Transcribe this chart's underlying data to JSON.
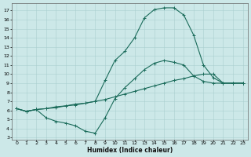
{
  "xlabel": "Humidex (Indice chaleur)",
  "xlim": [
    -0.5,
    23.5
  ],
  "ylim": [
    2.8,
    17.8
  ],
  "xticks": [
    0,
    1,
    2,
    3,
    4,
    5,
    6,
    7,
    8,
    9,
    10,
    11,
    12,
    13,
    14,
    15,
    16,
    17,
    18,
    19,
    20,
    21,
    22,
    23
  ],
  "yticks": [
    3,
    4,
    5,
    6,
    7,
    8,
    9,
    10,
    11,
    12,
    13,
    14,
    15,
    16,
    17
  ],
  "bg_color": "#cce8e8",
  "line_color": "#1a6b5a",
  "grid_color": "#aacfcf",
  "line1_x": [
    0,
    1,
    2,
    3,
    4,
    5,
    6,
    7,
    8,
    9,
    10,
    11,
    12,
    13,
    14,
    15,
    16,
    17,
    18,
    19,
    20,
    21,
    22,
    23
  ],
  "line1_y": [
    6.2,
    5.9,
    6.1,
    6.2,
    6.3,
    6.5,
    6.6,
    6.8,
    7.0,
    7.2,
    7.5,
    7.8,
    8.1,
    8.4,
    8.7,
    9.0,
    9.3,
    9.5,
    9.8,
    10.0,
    10.0,
    9.0,
    9.0,
    9.0
  ],
  "line2_x": [
    0,
    1,
    2,
    3,
    4,
    5,
    6,
    7,
    8,
    9,
    10,
    11,
    12,
    13,
    14,
    15,
    16,
    17,
    18,
    19,
    20,
    21,
    22,
    23
  ],
  "line2_y": [
    6.2,
    5.9,
    6.1,
    6.2,
    6.4,
    6.5,
    6.7,
    6.8,
    7.0,
    9.3,
    11.5,
    12.5,
    14.0,
    16.2,
    17.1,
    17.3,
    17.3,
    16.5,
    14.3,
    11.0,
    9.6,
    9.0,
    9.0,
    9.0
  ],
  "line3_x": [
    0,
    1,
    2,
    3,
    4,
    5,
    6,
    7,
    8,
    9,
    10,
    11,
    12,
    13,
    14,
    15,
    16,
    17,
    18,
    19,
    20,
    21,
    22,
    23
  ],
  "line3_y": [
    6.2,
    5.9,
    6.1,
    5.2,
    4.8,
    4.6,
    4.3,
    3.7,
    3.5,
    5.2,
    7.3,
    8.5,
    9.5,
    10.5,
    11.2,
    11.5,
    11.3,
    11.0,
    9.8,
    9.2,
    9.0,
    9.0,
    9.0,
    9.0
  ]
}
